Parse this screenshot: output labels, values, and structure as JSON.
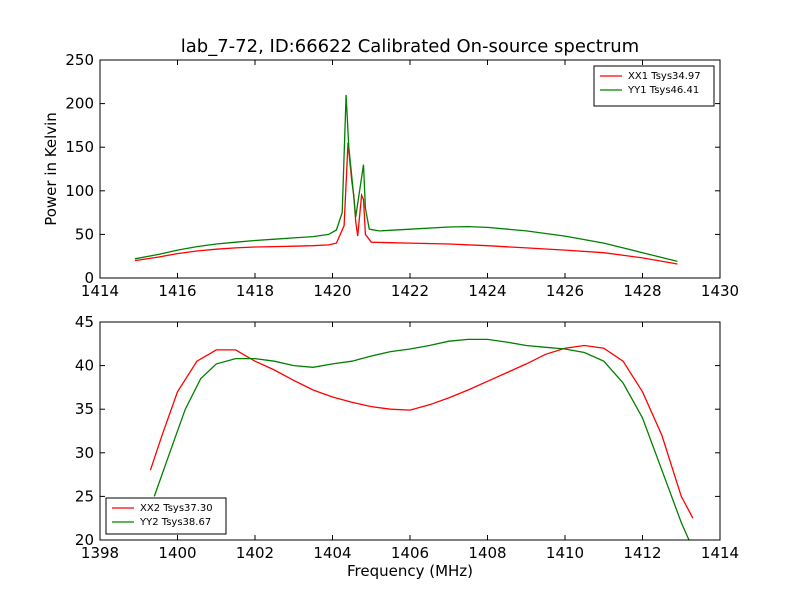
{
  "title": "lab_7-72, ID:66622 Calibrated On-source spectrum",
  "colors": {
    "red": "#ff0000",
    "green": "#008000"
  },
  "chart_data": [
    {
      "type": "line",
      "ylabel": "Power in Kelvin",
      "xlabel": "",
      "xlim": [
        1414,
        1430
      ],
      "ylim": [
        0,
        250
      ],
      "xticks": [
        "1414",
        "1416",
        "1418",
        "1420",
        "1422",
        "1424",
        "1426",
        "1428",
        "1430"
      ],
      "yticks": [
        "0",
        "50",
        "100",
        "150",
        "200",
        "250"
      ],
      "legend_position": "top-right",
      "series": [
        {
          "name": "XX1 Tsys34.97",
          "color": "#ff0000",
          "points": [
            [
              1414.9,
              20
            ],
            [
              1415.5,
              24
            ],
            [
              1416,
              28
            ],
            [
              1416.5,
              31
            ],
            [
              1417,
              33
            ],
            [
              1417.5,
              34.5
            ],
            [
              1418,
              35.5
            ],
            [
              1418.5,
              36
            ],
            [
              1419,
              36.5
            ],
            [
              1419.5,
              37
            ],
            [
              1419.9,
              38
            ],
            [
              1420.1,
              40
            ],
            [
              1420.3,
              60
            ],
            [
              1420.4,
              155
            ],
            [
              1420.5,
              110
            ],
            [
              1420.55,
              95
            ],
            [
              1420.6,
              65
            ],
            [
              1420.65,
              48
            ],
            [
              1420.75,
              95
            ],
            [
              1420.8,
              90
            ],
            [
              1420.85,
              50
            ],
            [
              1421,
              41
            ],
            [
              1421.5,
              40.5
            ],
            [
              1422,
              40
            ],
            [
              1423,
              39
            ],
            [
              1424,
              37
            ],
            [
              1425,
              34.5
            ],
            [
              1426,
              32
            ],
            [
              1427,
              29
            ],
            [
              1428,
              23
            ],
            [
              1428.9,
              16
            ]
          ]
        },
        {
          "name": "YY1 Tsys46.41",
          "color": "#008000",
          "points": [
            [
              1414.9,
              22
            ],
            [
              1415.5,
              27
            ],
            [
              1416,
              32
            ],
            [
              1416.5,
              36
            ],
            [
              1417,
              39
            ],
            [
              1417.5,
              41
            ],
            [
              1418,
              43
            ],
            [
              1418.5,
              44.5
            ],
            [
              1419,
              46
            ],
            [
              1419.5,
              47.5
            ],
            [
              1419.9,
              50
            ],
            [
              1420.1,
              55
            ],
            [
              1420.25,
              75
            ],
            [
              1420.35,
              210
            ],
            [
              1420.42,
              150
            ],
            [
              1420.5,
              115
            ],
            [
              1420.6,
              70
            ],
            [
              1420.7,
              100
            ],
            [
              1420.8,
              130
            ],
            [
              1420.85,
              80
            ],
            [
              1420.95,
              56
            ],
            [
              1421.2,
              54
            ],
            [
              1422,
              56
            ],
            [
              1423,
              58.5
            ],
            [
              1423.5,
              59
            ],
            [
              1424,
              58
            ],
            [
              1425,
              54
            ],
            [
              1426,
              48
            ],
            [
              1427,
              40
            ],
            [
              1428,
              29
            ],
            [
              1428.9,
              19
            ]
          ]
        }
      ]
    },
    {
      "type": "line",
      "xlabel": "Frequency (MHz)",
      "ylabel": "",
      "xlim": [
        1398,
        1414
      ],
      "ylim": [
        20,
        45
      ],
      "xticks": [
        "1398",
        "1400",
        "1402",
        "1404",
        "1406",
        "1408",
        "1410",
        "1412",
        "1414"
      ],
      "yticks": [
        "20",
        "25",
        "30",
        "35",
        "40",
        "45"
      ],
      "legend_position": "bottom-left",
      "series": [
        {
          "name": "XX2 Tsys37.30",
          "color": "#ff0000",
          "points": [
            [
              1399.3,
              28
            ],
            [
              1399.6,
              32
            ],
            [
              1400,
              37
            ],
            [
              1400.5,
              40.5
            ],
            [
              1401,
              41.8
            ],
            [
              1401.5,
              41.8
            ],
            [
              1402,
              40.5
            ],
            [
              1402.5,
              39.5
            ],
            [
              1403,
              38.3
            ],
            [
              1403.5,
              37.2
            ],
            [
              1404,
              36.4
            ],
            [
              1404.5,
              35.8
            ],
            [
              1405,
              35.3
            ],
            [
              1405.5,
              35
            ],
            [
              1406,
              34.9
            ],
            [
              1406.5,
              35.5
            ],
            [
              1407,
              36.3
            ],
            [
              1407.5,
              37.2
            ],
            [
              1408,
              38.2
            ],
            [
              1408.5,
              39.2
            ],
            [
              1409,
              40.2
            ],
            [
              1409.5,
              41.3
            ],
            [
              1410,
              42
            ],
            [
              1410.5,
              42.3
            ],
            [
              1411,
              42
            ],
            [
              1411.5,
              40.5
            ],
            [
              1412,
              37
            ],
            [
              1412.5,
              32
            ],
            [
              1413,
              25
            ],
            [
              1413.3,
              22.5
            ]
          ]
        },
        {
          "name": "YY2 Tsys38.67",
          "color": "#008000",
          "points": [
            [
              1399.4,
              25
            ],
            [
              1399.8,
              30
            ],
            [
              1400.2,
              35
            ],
            [
              1400.6,
              38.5
            ],
            [
              1401,
              40.2
            ],
            [
              1401.5,
              40.8
            ],
            [
              1402,
              40.8
            ],
            [
              1402.5,
              40.5
            ],
            [
              1403,
              40
            ],
            [
              1403.5,
              39.8
            ],
            [
              1404,
              40.2
            ],
            [
              1404.5,
              40.5
            ],
            [
              1405,
              41.1
            ],
            [
              1405.5,
              41.6
            ],
            [
              1406,
              41.9
            ],
            [
              1406.5,
              42.3
            ],
            [
              1407,
              42.8
            ],
            [
              1407.5,
              43
            ],
            [
              1408,
              43
            ],
            [
              1408.5,
              42.7
            ],
            [
              1409,
              42.3
            ],
            [
              1409.5,
              42.1
            ],
            [
              1410,
              41.9
            ],
            [
              1410.5,
              41.5
            ],
            [
              1411,
              40.5
            ],
            [
              1411.5,
              38
            ],
            [
              1412,
              34
            ],
            [
              1412.5,
              28
            ],
            [
              1413,
              22
            ],
            [
              1413.2,
              20
            ]
          ]
        }
      ]
    }
  ]
}
